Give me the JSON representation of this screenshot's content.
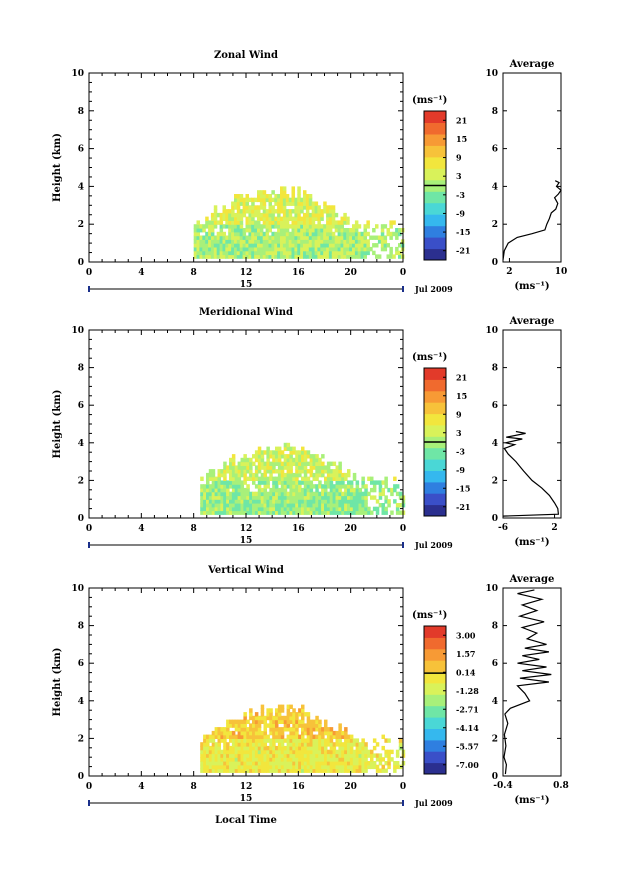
{
  "figure": {
    "date_label": "Jul 2009",
    "day_label": "15",
    "xlabel_bottom": "Local Time",
    "average_title": "Average",
    "unit_label": "(ms⁻¹)"
  },
  "colorbar": {
    "colors": [
      "#2b2f8f",
      "#3a4fc8",
      "#2f7fe0",
      "#35b8ee",
      "#4ad7d6",
      "#6fe6a6",
      "#a8f07a",
      "#d9f25a",
      "#f2e63d",
      "#f7c23a",
      "#f79a35",
      "#f06a2e",
      "#e23a2a"
    ]
  },
  "chart_data": [
    {
      "type": "heatmap",
      "title": "Zonal Wind",
      "ylabel": "Height (km)",
      "xlim": [
        0,
        24
      ],
      "ylim": [
        0,
        10
      ],
      "xticks": [
        "0",
        "4",
        "8",
        "12",
        "16",
        "20",
        "0"
      ],
      "yticks": [
        "0",
        "2",
        "4",
        "6",
        "8",
        "10"
      ],
      "colorbar_ticks": [
        "21",
        "15",
        "9",
        "3",
        "-3",
        "-9",
        "-15",
        "-21"
      ],
      "colorbar_range": [
        -24,
        24
      ],
      "seed": 11,
      "coverage": {
        "x_start": 8.0,
        "x_end": 24.0,
        "top_peak": 4.0
      },
      "base_value": 1,
      "profile": {
        "title": "Average",
        "xlabel": "(ms⁻¹)",
        "xlim": [
          1,
          10
        ],
        "xticks": [
          "2",
          "10"
        ],
        "yticks": [
          "0",
          "2",
          "4",
          "6",
          "8",
          "10"
        ],
        "ylim": [
          0,
          10
        ],
        "points": [
          [
            1.0,
            0.1
          ],
          [
            1.2,
            0.6
          ],
          [
            1.8,
            1.0
          ],
          [
            3.2,
            1.3
          ],
          [
            5.5,
            1.5
          ],
          [
            7.5,
            1.7
          ],
          [
            7.8,
            2.0
          ],
          [
            8.2,
            2.3
          ],
          [
            8.5,
            2.6
          ],
          [
            9.2,
            2.8
          ],
          [
            9.5,
            3.1
          ],
          [
            9.0,
            3.4
          ],
          [
            9.6,
            3.6
          ],
          [
            10.0,
            3.8
          ],
          [
            9.3,
            4.0
          ],
          [
            9.7,
            4.2
          ],
          [
            9.1,
            4.3
          ]
        ]
      }
    },
    {
      "type": "heatmap",
      "title": "Meridional Wind",
      "ylabel": "Height (km)",
      "xlim": [
        0,
        24
      ],
      "ylim": [
        0,
        10
      ],
      "xticks": [
        "0",
        "4",
        "8",
        "12",
        "16",
        "20",
        "0"
      ],
      "yticks": [
        "0",
        "2",
        "4",
        "6",
        "8",
        "10"
      ],
      "colorbar_ticks": [
        "21",
        "15",
        "9",
        "3",
        "-3",
        "-9",
        "-15",
        "-21"
      ],
      "colorbar_range": [
        -24,
        24
      ],
      "seed": 23,
      "coverage": {
        "x_start": 8.5,
        "x_end": 24.0,
        "top_peak": 4.0
      },
      "base_value": -1,
      "profile": {
        "title": "Average",
        "xlabel": "(ms⁻¹)",
        "xlim": [
          -6,
          3
        ],
        "xticks": [
          "-6",
          "2"
        ],
        "yticks": [
          "0",
          "2",
          "4",
          "6",
          "8",
          "10"
        ],
        "ylim": [
          0,
          10
        ],
        "points": [
          [
            -6.0,
            0.1
          ],
          [
            2.6,
            0.2
          ],
          [
            2.5,
            0.5
          ],
          [
            2.0,
            0.8
          ],
          [
            1.2,
            1.2
          ],
          [
            0.0,
            1.6
          ],
          [
            -1.5,
            2.0
          ],
          [
            -2.8,
            2.5
          ],
          [
            -4.0,
            3.0
          ],
          [
            -5.2,
            3.4
          ],
          [
            -5.8,
            3.7
          ],
          [
            -4.2,
            3.9
          ],
          [
            -5.6,
            4.0
          ],
          [
            -3.0,
            4.2
          ],
          [
            -5.5,
            4.3
          ],
          [
            -2.5,
            4.5
          ],
          [
            -4.0,
            4.6
          ]
        ]
      }
    },
    {
      "type": "heatmap",
      "title": "Vertical Wind",
      "ylabel": "Height (km)",
      "xlabel": "Local Time",
      "xlim": [
        0,
        24
      ],
      "ylim": [
        0,
        10
      ],
      "xticks": [
        "0",
        "4",
        "8",
        "12",
        "16",
        "20",
        "0"
      ],
      "yticks": [
        "0",
        "2",
        "4",
        "6",
        "8",
        "10"
      ],
      "colorbar_ticks": [
        "3.00",
        "1.57",
        "0.14",
        "-1.28",
        "-2.71",
        "-4.14",
        "-5.57",
        "-7.00"
      ],
      "colorbar_range": [
        -7.5,
        3.5
      ],
      "seed": 37,
      "coverage": {
        "x_start": 8.5,
        "x_end": 24.0,
        "top_peak": 3.8
      },
      "base_value": -0.6,
      "profile": {
        "title": "Average",
        "xlabel": "(ms⁻¹)",
        "xlim": [
          -0.4,
          0.8
        ],
        "xticks": [
          "-0.4",
          "0.8"
        ],
        "yticks": [
          "0",
          "2",
          "4",
          "6",
          "8",
          "10"
        ],
        "ylim": [
          0,
          10
        ],
        "points": [
          [
            -0.35,
            0.1
          ],
          [
            -0.33,
            0.6
          ],
          [
            -0.38,
            1.0
          ],
          [
            -0.34,
            1.6
          ],
          [
            -0.37,
            2.2
          ],
          [
            -0.3,
            2.8
          ],
          [
            -0.36,
            3.3
          ],
          [
            -0.25,
            3.6
          ],
          [
            0.15,
            4.0
          ],
          [
            0.05,
            4.4
          ],
          [
            -0.1,
            4.8
          ],
          [
            0.55,
            5.0
          ],
          [
            -0.05,
            5.2
          ],
          [
            0.6,
            5.4
          ],
          [
            0.0,
            5.6
          ],
          [
            0.5,
            5.8
          ],
          [
            -0.1,
            6.0
          ],
          [
            0.35,
            6.2
          ],
          [
            0.0,
            6.4
          ],
          [
            0.55,
            6.6
          ],
          [
            0.05,
            6.8
          ],
          [
            0.5,
            7.0
          ],
          [
            0.1,
            7.3
          ],
          [
            0.3,
            7.6
          ],
          [
            0.0,
            7.9
          ],
          [
            0.45,
            8.2
          ],
          [
            -0.05,
            8.5
          ],
          [
            0.3,
            8.8
          ],
          [
            0.0,
            9.1
          ],
          [
            0.4,
            9.4
          ],
          [
            -0.1,
            9.7
          ],
          [
            0.25,
            9.9
          ]
        ]
      }
    }
  ]
}
